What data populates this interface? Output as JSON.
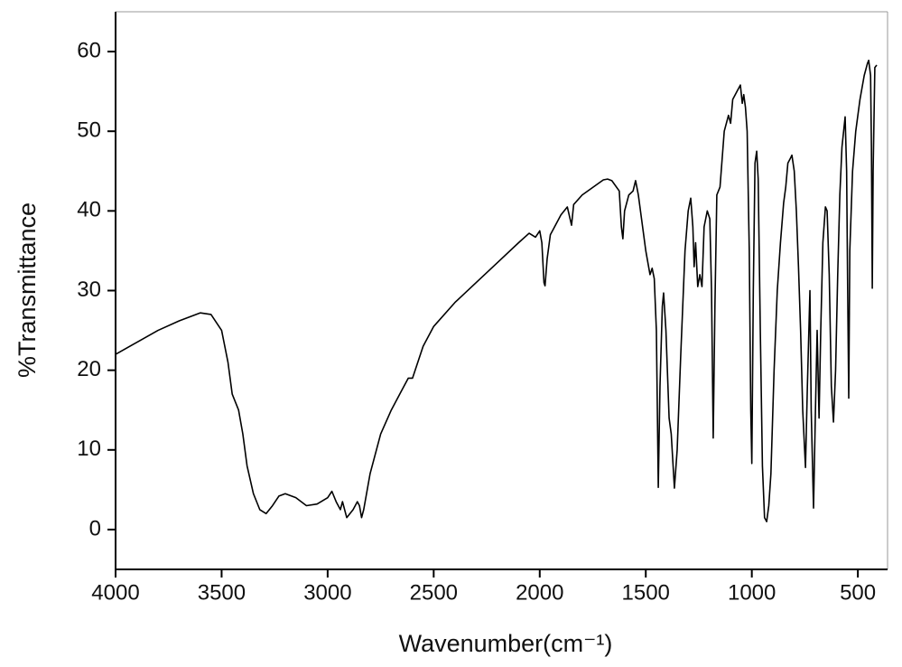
{
  "chart_data": {
    "type": "line",
    "xlabel": "Wavenumber(cm⁻¹)",
    "ylabel": "%Transmittance",
    "color": "#000000",
    "xlim": [
      4000,
      360
    ],
    "ylim": [
      -5,
      65
    ],
    "xticks": [
      4000,
      3500,
      3000,
      2500,
      2000,
      1500,
      1000,
      500
    ],
    "yticks": [
      0,
      10,
      20,
      30,
      40,
      50,
      60
    ],
    "x": [
      4000,
      3900,
      3800,
      3700,
      3600,
      3550,
      3500,
      3470,
      3450,
      3420,
      3400,
      3380,
      3350,
      3320,
      3290,
      3260,
      3230,
      3200,
      3150,
      3100,
      3050,
      3000,
      2980,
      2960,
      2940,
      2930,
      2910,
      2880,
      2860,
      2850,
      2840,
      2830,
      2800,
      2750,
      2700,
      2650,
      2620,
      2600,
      2550,
      2500,
      2400,
      2300,
      2200,
      2100,
      2050,
      2020,
      2000,
      1990,
      1980,
      1975,
      1965,
      1950,
      1900,
      1870,
      1850,
      1840,
      1800,
      1700,
      1680,
      1660,
      1625,
      1615,
      1608,
      1600,
      1580,
      1560,
      1548,
      1535,
      1520,
      1500,
      1480,
      1470,
      1460,
      1450,
      1441,
      1433,
      1422,
      1416,
      1405,
      1390,
      1380,
      1365,
      1352,
      1335,
      1315,
      1300,
      1288,
      1278,
      1272,
      1265,
      1255,
      1245,
      1235,
      1225,
      1210,
      1198,
      1190,
      1182,
      1174,
      1165,
      1150,
      1130,
      1110,
      1100,
      1090,
      1070,
      1054,
      1045,
      1038,
      1030,
      1022,
      1012,
      1005,
      1000,
      993,
      985,
      977,
      970,
      960,
      950,
      940,
      930,
      920,
      910,
      895,
      880,
      865,
      850,
      840,
      830,
      820,
      811,
      800,
      790,
      780,
      770,
      760,
      747,
      738,
      730,
      726,
      720,
      709,
      700,
      692,
      683,
      675,
      665,
      653,
      645,
      635,
      625,
      615,
      605,
      595,
      585,
      575,
      560,
      553,
      548,
      543,
      538,
      525,
      510,
      490,
      470,
      455,
      449,
      440,
      436,
      432,
      428,
      420,
      411
    ],
    "values": [
      22,
      23.5,
      25,
      26.2,
      27.2,
      27,
      25,
      21,
      17,
      15,
      12,
      8,
      4.5,
      2.5,
      2,
      3,
      4.2,
      4.5,
      4,
      3,
      3.2,
      4,
      4.8,
      3.5,
      2.5,
      3.5,
      1.5,
      2.5,
      3.5,
      3,
      1.5,
      2.5,
      7,
      12,
      15,
      17.5,
      19,
      19,
      23,
      25.5,
      28.5,
      31,
      33.5,
      36,
      37.2,
      36.7,
      37.5,
      36,
      31,
      30.6,
      34,
      37,
      39.5,
      40.5,
      38.2,
      40.8,
      42,
      43.9,
      44,
      43.8,
      42.5,
      38,
      36.5,
      40,
      42,
      42.5,
      43.8,
      42,
      39,
      35,
      32,
      32.8,
      31.5,
      25,
      5.3,
      18,
      28,
      29.7,
      25,
      14,
      12,
      5.2,
      10,
      22,
      35,
      40,
      41.6,
      38,
      33,
      36,
      30.5,
      32,
      30.5,
      38,
      40,
      39,
      30,
      11.5,
      28,
      42,
      43,
      50,
      52,
      51,
      54,
      55,
      55.8,
      53.5,
      54.6,
      53,
      50,
      35,
      15,
      8.3,
      30,
      46,
      47.5,
      44,
      25,
      8,
      1.5,
      1,
      3,
      7,
      20,
      30,
      36,
      41,
      43,
      46,
      46.5,
      47,
      45,
      40,
      33,
      25,
      15,
      7.8,
      18,
      26,
      30,
      15,
      2.7,
      15,
      25,
      14,
      25,
      36,
      40.5,
      40,
      32,
      18,
      13.5,
      20,
      32,
      42,
      48,
      51.8,
      45,
      30,
      16.5,
      35,
      45,
      50,
      54,
      57,
      58.5,
      58.9,
      57,
      48,
      30.3,
      45,
      58,
      58.3
    ]
  }
}
